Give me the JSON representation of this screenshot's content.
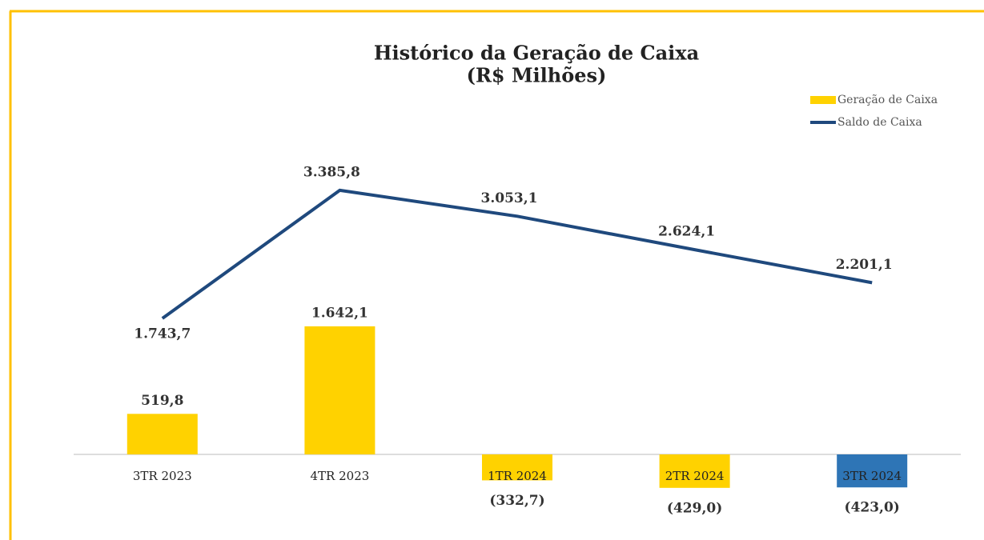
{
  "chart_data": {
    "type": "bar_line",
    "title": "Histórico da Geração de Caixa",
    "subtitle": "(R$ Milhões)",
    "categories": [
      "3TR 2023",
      "4TR 2023",
      "1TR 2024",
      "2TR 2024",
      "3TR 2024"
    ],
    "series": [
      {
        "name": "Geração de Caixa",
        "type": "bar",
        "color": "#ffd200",
        "colors": [
          "#ffd200",
          "#ffd200",
          "#ffd200",
          "#ffd200",
          "#2e75b6"
        ],
        "values": [
          519.8,
          1642.1,
          -332.7,
          -429.0,
          -423.0
        ],
        "value_labels": [
          "519,8",
          "1.642,1",
          "(332,7)",
          "(429,0)",
          "(423,0)"
        ]
      },
      {
        "name": "Saldo de Caixa",
        "type": "line",
        "color": "#1f497d",
        "values": [
          1743.7,
          3385.8,
          3053.1,
          2624.1,
          2201.1
        ],
        "value_labels": [
          "1.743,7",
          "3.385,8",
          "3.053,1",
          "2.624,1",
          "2.201,1"
        ]
      }
    ],
    "ylim": [
      -800,
      4000
    ],
    "legend": "top-right"
  }
}
